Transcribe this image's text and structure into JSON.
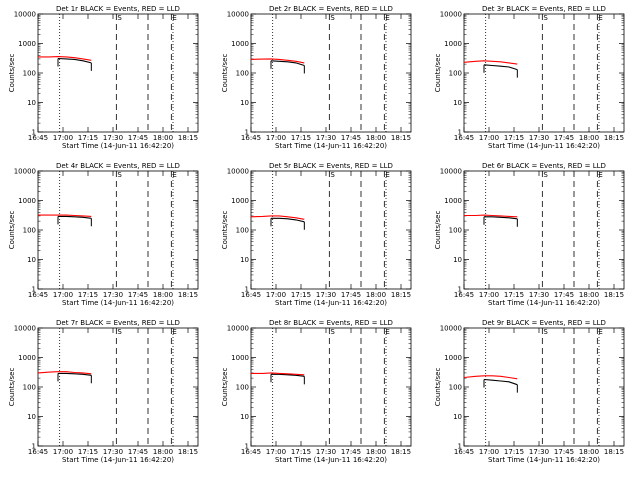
{
  "figure": {
    "layout": "3x3 grid of detector rate plots",
    "colors": {
      "events": "#000000",
      "lld": "#ff0000",
      "axes": "#000000"
    }
  },
  "chart_data": [
    {
      "type": "line",
      "title": "Det 1r BLACK = Events, RED = LLD",
      "xlabel": "Start Time (14-Jun-11 16:42:20)",
      "ylabel": "Counts/sec",
      "yscale": "log",
      "ylim": [
        1,
        10000
      ],
      "xlim": [
        "16:45",
        "18:21"
      ],
      "x_ticks": [
        "16:45",
        "17:00",
        "17:15",
        "17:30",
        "17:45",
        "18:00",
        "18:15"
      ],
      "y_ticks": [
        "1",
        "10",
        "100",
        "1000",
        "10000"
      ],
      "markers": [
        {
          "label": "S",
          "time": "17:32",
          "style": "dashed"
        },
        {
          "label": "E",
          "time": "18:05",
          "style": "dashed"
        }
      ],
      "dashed_lines": [
        "17:51"
      ],
      "dotted_lines": [
        "16:58",
        "18:06"
      ],
      "series": [
        {
          "name": "Events",
          "color": "#000000",
          "x": [
            "16:57",
            "17:02",
            "17:07",
            "17:12",
            "17:17"
          ],
          "y": [
            310,
            300,
            290,
            260,
            220
          ]
        },
        {
          "name": "LLD",
          "color": "#ff0000",
          "x": [
            "16:45",
            "16:52",
            "16:57",
            "17:02",
            "17:07",
            "17:12",
            "17:17"
          ],
          "y": [
            350,
            350,
            360,
            350,
            330,
            300,
            270
          ]
        }
      ]
    },
    {
      "type": "line",
      "title": "Det 2r BLACK = Events, RED = LLD",
      "xlabel": "Start Time (14-Jun-11 16:42:20)",
      "ylabel": "Counts/sec",
      "yscale": "log",
      "ylim": [
        1,
        10000
      ],
      "xlim": [
        "16:45",
        "18:21"
      ],
      "x_ticks": [
        "16:45",
        "17:00",
        "17:15",
        "17:30",
        "17:45",
        "18:00",
        "18:15"
      ],
      "y_ticks": [
        "1",
        "10",
        "100",
        "1000",
        "10000"
      ],
      "markers": [
        {
          "label": "S",
          "time": "17:32",
          "style": "dashed"
        },
        {
          "label": "E",
          "time": "18:05",
          "style": "dashed"
        }
      ],
      "dashed_lines": [
        "17:51"
      ],
      "dotted_lines": [
        "16:58",
        "18:06"
      ],
      "series": [
        {
          "name": "Events",
          "color": "#000000",
          "x": [
            "16:57",
            "17:02",
            "17:07",
            "17:12",
            "17:17"
          ],
          "y": [
            260,
            250,
            240,
            220,
            180
          ]
        },
        {
          "name": "LLD",
          "color": "#ff0000",
          "x": [
            "16:45",
            "16:52",
            "16:57",
            "17:02",
            "17:07",
            "17:12",
            "17:17"
          ],
          "y": [
            290,
            295,
            300,
            290,
            270,
            250,
            220
          ]
        }
      ]
    },
    {
      "type": "line",
      "title": "Det 3r BLACK = Events, RED = LLD",
      "xlabel": "Start Time (14-Jun-11 16:42:20)",
      "ylabel": "Counts/sec",
      "yscale": "log",
      "ylim": [
        1,
        10000
      ],
      "xlim": [
        "16:45",
        "18:21"
      ],
      "x_ticks": [
        "16:45",
        "17:00",
        "17:15",
        "17:30",
        "17:45",
        "18:00",
        "18:15"
      ],
      "y_ticks": [
        "1",
        "10",
        "100",
        "1000",
        "10000"
      ],
      "markers": [
        {
          "label": "S",
          "time": "17:32",
          "style": "dashed"
        },
        {
          "label": "E",
          "time": "18:05",
          "style": "dashed"
        }
      ],
      "dashed_lines": [
        "17:51"
      ],
      "dotted_lines": [
        "16:58",
        "18:06"
      ],
      "series": [
        {
          "name": "Events",
          "color": "#000000",
          "x": [
            "16:57",
            "17:02",
            "17:07",
            "17:12",
            "17:17"
          ],
          "y": [
            190,
            180,
            170,
            160,
            130
          ]
        },
        {
          "name": "LLD",
          "color": "#ff0000",
          "x": [
            "16:45",
            "16:52",
            "16:57",
            "17:02",
            "17:07",
            "17:12",
            "17:17"
          ],
          "y": [
            230,
            250,
            260,
            250,
            240,
            220,
            200
          ]
        }
      ]
    },
    {
      "type": "line",
      "title": "Det 4r BLACK = Events, RED = LLD",
      "xlabel": "Start Time (14-Jun-11 16:42:20)",
      "ylabel": "Counts/sec",
      "yscale": "log",
      "ylim": [
        1,
        10000
      ],
      "xlim": [
        "16:45",
        "18:21"
      ],
      "x_ticks": [
        "16:45",
        "17:00",
        "17:15",
        "17:30",
        "17:45",
        "18:00",
        "18:15"
      ],
      "y_ticks": [
        "1",
        "10",
        "100",
        "1000",
        "10000"
      ],
      "markers": [
        {
          "label": "S",
          "time": "17:32",
          "style": "dashed"
        },
        {
          "label": "E",
          "time": "18:05",
          "style": "dashed"
        }
      ],
      "dashed_lines": [
        "17:51"
      ],
      "dotted_lines": [
        "16:58",
        "18:06"
      ],
      "series": [
        {
          "name": "Events",
          "color": "#000000",
          "x": [
            "16:57",
            "17:02",
            "17:07",
            "17:12",
            "17:17"
          ],
          "y": [
            290,
            290,
            280,
            270,
            250
          ]
        },
        {
          "name": "LLD",
          "color": "#ff0000",
          "x": [
            "16:45",
            "16:52",
            "16:57",
            "17:02",
            "17:07",
            "17:12",
            "17:17"
          ],
          "y": [
            320,
            320,
            320,
            320,
            310,
            300,
            290
          ]
        }
      ]
    },
    {
      "type": "line",
      "title": "Det 5r BLACK = Events, RED = LLD",
      "xlabel": "Start Time (14-Jun-11 16:42:20)",
      "ylabel": "Counts/sec",
      "yscale": "log",
      "ylim": [
        1,
        10000
      ],
      "xlim": [
        "16:45",
        "18:21"
      ],
      "x_ticks": [
        "16:45",
        "17:00",
        "17:15",
        "17:30",
        "17:45",
        "18:00",
        "18:15"
      ],
      "y_ticks": [
        "1",
        "10",
        "100",
        "1000",
        "10000"
      ],
      "markers": [
        {
          "label": "S",
          "time": "17:32",
          "style": "dashed"
        },
        {
          "label": "E",
          "time": "18:05",
          "style": "dashed"
        }
      ],
      "dashed_lines": [
        "17:51"
      ],
      "dotted_lines": [
        "16:58",
        "18:06"
      ],
      "series": [
        {
          "name": "Events",
          "color": "#000000",
          "x": [
            "16:57",
            "17:02",
            "17:07",
            "17:12",
            "17:17"
          ],
          "y": [
            250,
            250,
            240,
            220,
            190
          ]
        },
        {
          "name": "LLD",
          "color": "#ff0000",
          "x": [
            "16:45",
            "16:52",
            "16:57",
            "17:02",
            "17:07",
            "17:12",
            "17:17"
          ],
          "y": [
            280,
            290,
            300,
            300,
            280,
            260,
            230
          ]
        }
      ]
    },
    {
      "type": "line",
      "title": "Det 6r BLACK = Events, RED = LLD",
      "xlabel": "Start Time (14-Jun-11 16:42:20)",
      "ylabel": "Counts/sec",
      "yscale": "log",
      "ylim": [
        1,
        10000
      ],
      "xlim": [
        "16:45",
        "18:21"
      ],
      "x_ticks": [
        "16:45",
        "17:00",
        "17:15",
        "17:30",
        "17:45",
        "18:00",
        "18:15"
      ],
      "y_ticks": [
        "1",
        "10",
        "100",
        "1000",
        "10000"
      ],
      "markers": [
        {
          "label": "S",
          "time": "17:32",
          "style": "dashed"
        },
        {
          "label": "E",
          "time": "18:05",
          "style": "dashed"
        }
      ],
      "dashed_lines": [
        "17:51"
      ],
      "dotted_lines": [
        "16:58",
        "18:06"
      ],
      "series": [
        {
          "name": "Events",
          "color": "#000000",
          "x": [
            "16:57",
            "17:02",
            "17:07",
            "17:12",
            "17:17"
          ],
          "y": [
            280,
            280,
            270,
            260,
            240
          ]
        },
        {
          "name": "LLD",
          "color": "#ff0000",
          "x": [
            "16:45",
            "16:52",
            "16:57",
            "17:02",
            "17:07",
            "17:12",
            "17:17"
          ],
          "y": [
            310,
            310,
            320,
            310,
            300,
            290,
            280
          ]
        }
      ]
    },
    {
      "type": "line",
      "title": "Det 7r BLACK = Events, RED = LLD",
      "xlabel": "Start Time (14-Jun-11 16:42:20)",
      "ylabel": "Counts/sec",
      "yscale": "log",
      "ylim": [
        1,
        10000
      ],
      "xlim": [
        "16:45",
        "18:21"
      ],
      "x_ticks": [
        "16:45",
        "17:00",
        "17:15",
        "17:30",
        "17:45",
        "18:00",
        "18:15"
      ],
      "y_ticks": [
        "1",
        "10",
        "100",
        "1000",
        "10000"
      ],
      "markers": [
        {
          "label": "S",
          "time": "17:32",
          "style": "dashed"
        },
        {
          "label": "E",
          "time": "18:05",
          "style": "dashed"
        }
      ],
      "dashed_lines": [
        "17:51"
      ],
      "dotted_lines": [
        "16:58",
        "18:06"
      ],
      "series": [
        {
          "name": "Events",
          "color": "#000000",
          "x": [
            "16:57",
            "17:02",
            "17:07",
            "17:12",
            "17:17"
          ],
          "y": [
            290,
            290,
            280,
            270,
            250
          ]
        },
        {
          "name": "LLD",
          "color": "#ff0000",
          "x": [
            "16:45",
            "16:52",
            "16:57",
            "17:02",
            "17:07",
            "17:12",
            "17:17"
          ],
          "y": [
            300,
            320,
            330,
            330,
            310,
            300,
            280
          ]
        }
      ]
    },
    {
      "type": "line",
      "title": "Det 8r BLACK = Events, RED = LLD",
      "xlabel": "Start Time (14-Jun-11 16:42:20)",
      "ylabel": "Counts/sec",
      "yscale": "log",
      "ylim": [
        1,
        10000
      ],
      "xlim": [
        "16:45",
        "18:21"
      ],
      "x_ticks": [
        "16:45",
        "17:00",
        "17:15",
        "17:30",
        "17:45",
        "18:00",
        "18:15"
      ],
      "y_ticks": [
        "1",
        "10",
        "100",
        "1000",
        "10000"
      ],
      "markers": [
        {
          "label": "S",
          "time": "17:32",
          "style": "dashed"
        },
        {
          "label": "E",
          "time": "18:05",
          "style": "dashed"
        }
      ],
      "dashed_lines": [
        "17:51"
      ],
      "dotted_lines": [
        "16:58",
        "18:06"
      ],
      "series": [
        {
          "name": "Events",
          "color": "#000000",
          "x": [
            "16:57",
            "17:02",
            "17:07",
            "17:12",
            "17:17"
          ],
          "y": [
            270,
            270,
            260,
            250,
            230
          ]
        },
        {
          "name": "LLD",
          "color": "#ff0000",
          "x": [
            "16:45",
            "16:52",
            "16:57",
            "17:02",
            "17:07",
            "17:12",
            "17:17"
          ],
          "y": [
            290,
            290,
            300,
            290,
            280,
            270,
            260
          ]
        }
      ]
    },
    {
      "type": "line",
      "title": "Det 9r BLACK = Events, RED = LLD",
      "xlabel": "Start Time (14-Jun-11 16:42:20)",
      "ylabel": "Counts/sec",
      "yscale": "log",
      "ylim": [
        1,
        10000
      ],
      "xlim": [
        "16:45",
        "18:21"
      ],
      "x_ticks": [
        "16:45",
        "17:00",
        "17:15",
        "17:30",
        "17:45",
        "18:00",
        "18:15"
      ],
      "y_ticks": [
        "1",
        "10",
        "100",
        "1000",
        "10000"
      ],
      "markers": [
        {
          "label": "S",
          "time": "17:32",
          "style": "dashed"
        },
        {
          "label": "E",
          "time": "18:05",
          "style": "dashed"
        }
      ],
      "dashed_lines": [
        "17:51"
      ],
      "dotted_lines": [
        "16:58",
        "18:06"
      ],
      "series": [
        {
          "name": "Events",
          "color": "#000000",
          "x": [
            "16:57",
            "17:02",
            "17:07",
            "17:12",
            "17:17"
          ],
          "y": [
            180,
            170,
            160,
            150,
            120
          ]
        },
        {
          "name": "LLD",
          "color": "#ff0000",
          "x": [
            "16:45",
            "16:52",
            "16:57",
            "17:02",
            "17:07",
            "17:12",
            "17:17"
          ],
          "y": [
            210,
            230,
            240,
            240,
            230,
            210,
            190
          ]
        }
      ]
    }
  ]
}
